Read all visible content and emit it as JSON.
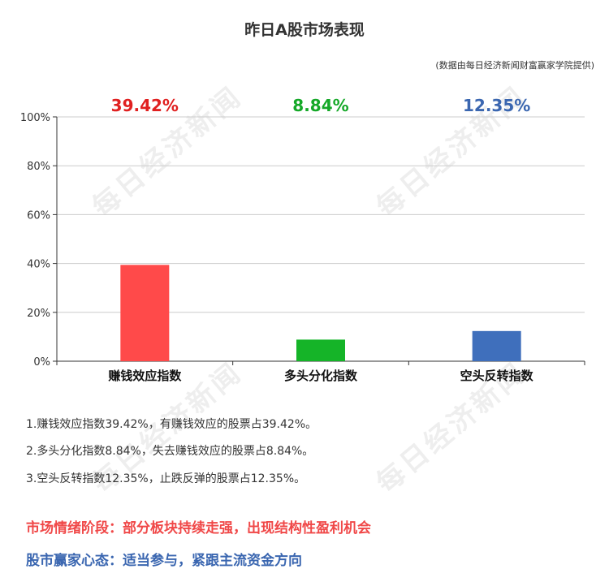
{
  "title": "昨日A股市场表现",
  "source_note": "(数据由每日经济新闻财富赢家学院提供)",
  "watermark_text": "每日经济新闻",
  "chart_data": {
    "type": "bar",
    "categories": [
      "赚钱效应指数",
      "多头分化指数",
      "空头反转指数"
    ],
    "values": [
      39.42,
      8.84,
      12.35
    ],
    "value_labels": [
      "39.42%",
      "8.84%",
      "12.35%"
    ],
    "colors": [
      "#ff4a4a",
      "#15b428",
      "#3f6fbc"
    ],
    "label_colors": [
      "#e02020",
      "#15a828",
      "#3a66b0"
    ],
    "ylim": [
      0,
      100
    ],
    "yticks": [
      0,
      20,
      40,
      60,
      80,
      100
    ],
    "ytick_labels": [
      "0%",
      "20%",
      "40%",
      "60%",
      "80%",
      "100%"
    ],
    "grid": true
  },
  "notes": [
    "1.赚钱效应指数39.42%，有赚钱效应的股票占39.42%。",
    "2.多头分化指数8.84%，失去赚钱效应的股票占8.84%。",
    "3.空头反转指数12.35%，止跌反弹的股票占12.35%。"
  ],
  "summary": {
    "sentiment_stage": "市场情绪阶段：部分板块持续走强，出现结构性盈利机会",
    "sentiment_color": "#f04848",
    "investor_mindset": "股市赢家心态：适当参与，紧跟主流资金方向",
    "mindset_color": "#3a66b0"
  }
}
